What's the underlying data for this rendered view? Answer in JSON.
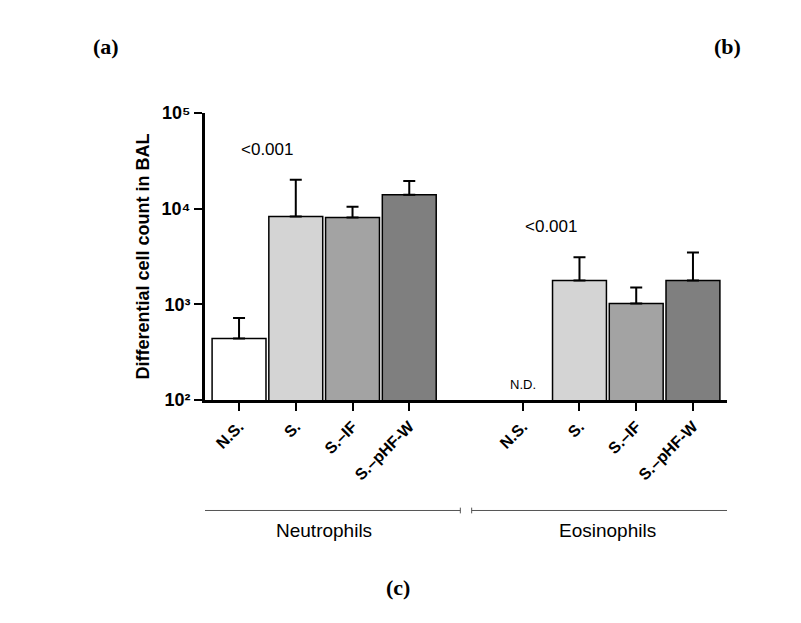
{
  "chart_data": {
    "type": "bar",
    "y_title": "Differential cell count in BAL",
    "categories": [
      "N.S.",
      "S.",
      "S.–IF",
      "S.–pHF-W",
      null,
      "N.S.",
      "S.",
      "S.–IF",
      "S.–pHF-W"
    ],
    "values": [
      440,
      8300,
      8100,
      14000,
      null,
      null,
      1780,
      1020,
      1780
    ],
    "errors": [
      280,
      11700,
      2400,
      5500,
      null,
      null,
      1320,
      480,
      1700
    ],
    "colors": [
      "#ffffff",
      "#d4d4d4",
      "#a3a3a3",
      "#7f7f7f",
      null,
      "#ffffff",
      "#d4d4d4",
      "#a3a3a3",
      "#7f7f7f"
    ],
    "log": "y",
    "grid": false,
    "ylim": [
      100,
      100000
    ],
    "yticks": [
      {
        "value": 100,
        "label": "10²"
      },
      {
        "value": 1000,
        "label": "10³"
      },
      {
        "value": 10000,
        "label": "10⁴"
      },
      {
        "value": 100000,
        "label": "10⁵"
      }
    ],
    "significance": [
      {
        "text": "<0.001",
        "from": 0,
        "to": 1
      },
      {
        "text": "<0.001",
        "from": 5,
        "to": 6
      }
    ],
    "missing_labels": [
      {
        "text": "N.D.",
        "at": 5
      }
    ],
    "groups": [
      {
        "label": "Neutrophils",
        "from": 0,
        "to": 3
      },
      {
        "label": "Eosinophils",
        "from": 5,
        "to": 8
      }
    ],
    "panels": [
      "(a)",
      "(b)",
      "(c)"
    ]
  }
}
